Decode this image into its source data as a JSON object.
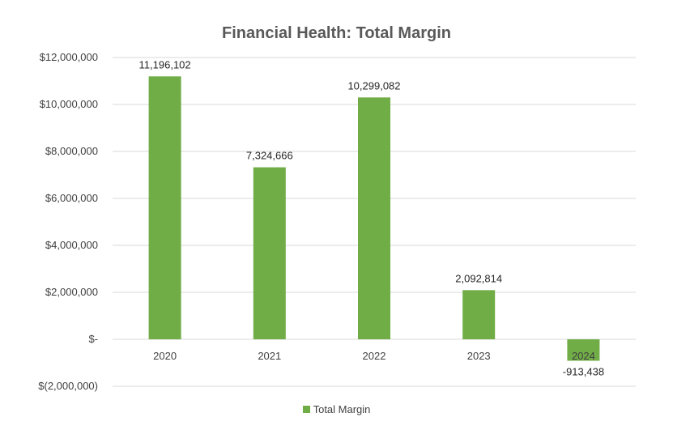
{
  "chart_data": {
    "type": "bar",
    "title": "Financial Health: Total Margin",
    "categories": [
      "2020",
      "2021",
      "2022",
      "2023",
      "2024"
    ],
    "series": [
      {
        "name": "Total Margin",
        "values": [
          11196102,
          7324666,
          10299082,
          2092814,
          -913438
        ],
        "data_labels": [
          "11,196,102",
          "7,324,666",
          "10,299,082",
          "2,092,814",
          "-913,438"
        ],
        "color": "#70ad47"
      }
    ],
    "y_ticks": [
      12000000,
      10000000,
      8000000,
      6000000,
      4000000,
      2000000,
      0,
      -2000000
    ],
    "y_tick_labels": [
      "$12,000,000",
      "$10,000,000",
      "$8,000,000",
      "$6,000,000",
      "$4,000,000",
      "$2,000,000",
      "$-",
      "$(2,000,000)"
    ],
    "ylim": [
      -2000000,
      12000000
    ],
    "grid": true,
    "legend_position": "bottom"
  }
}
